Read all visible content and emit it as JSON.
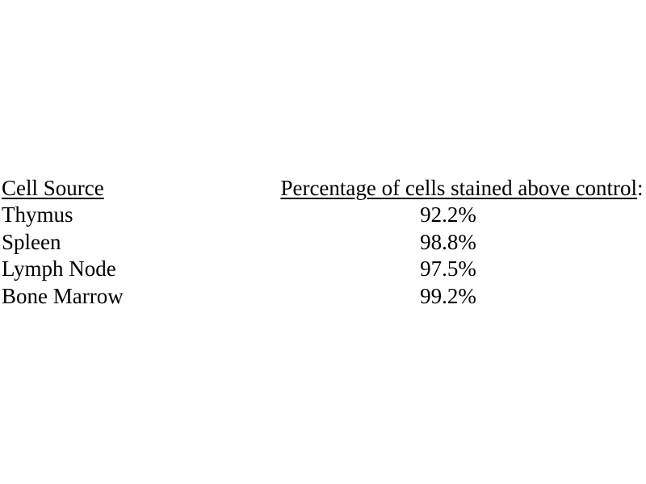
{
  "table": {
    "col1_header": "Cell Source",
    "col2_header": "Percentage of cells stained above control",
    "col2_header_suffix": ":",
    "rows": [
      {
        "cell_source": "Thymus",
        "percentage": "92.2%"
      },
      {
        "cell_source": "Spleen",
        "percentage": "98.8%"
      },
      {
        "cell_source": "Lymph Node",
        "percentage": "97.5%"
      },
      {
        "cell_source": "Bone Marrow",
        "percentage": "99.2%"
      }
    ]
  },
  "colors": {
    "text": "#000000",
    "background": "#ffffff"
  }
}
